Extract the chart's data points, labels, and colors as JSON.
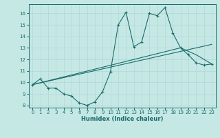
{
  "xlabel": "Humidex (Indice chaleur)",
  "background_color": "#c5e8e5",
  "grid_color": "#b0d8d5",
  "line_color": "#1a6b6b",
  "xlim": [
    -0.5,
    23.5
  ],
  "ylim": [
    7.8,
    16.8
  ],
  "yticks": [
    8,
    9,
    10,
    11,
    12,
    13,
    14,
    15,
    16
  ],
  "xticks": [
    0,
    1,
    2,
    3,
    4,
    5,
    6,
    7,
    8,
    9,
    10,
    11,
    12,
    13,
    14,
    15,
    16,
    17,
    18,
    19,
    20,
    21,
    22,
    23
  ],
  "line1_x": [
    0,
    1,
    2,
    3,
    4,
    5,
    6,
    7,
    8,
    9,
    10,
    11,
    12,
    13,
    14,
    15,
    16,
    17,
    18,
    19,
    20,
    21,
    22,
    23
  ],
  "line1_y": [
    9.8,
    10.3,
    9.5,
    9.5,
    9.0,
    8.8,
    8.2,
    8.0,
    8.3,
    9.2,
    10.9,
    15.0,
    16.1,
    13.1,
    13.5,
    16.0,
    15.8,
    16.5,
    14.3,
    13.0,
    12.4,
    11.7,
    11.5,
    11.6
  ],
  "line2_x": [
    0,
    23
  ],
  "line2_y": [
    9.8,
    13.3
  ],
  "line3_x": [
    0,
    19,
    21,
    23
  ],
  "line3_y": [
    9.8,
    13.0,
    12.4,
    11.6
  ]
}
